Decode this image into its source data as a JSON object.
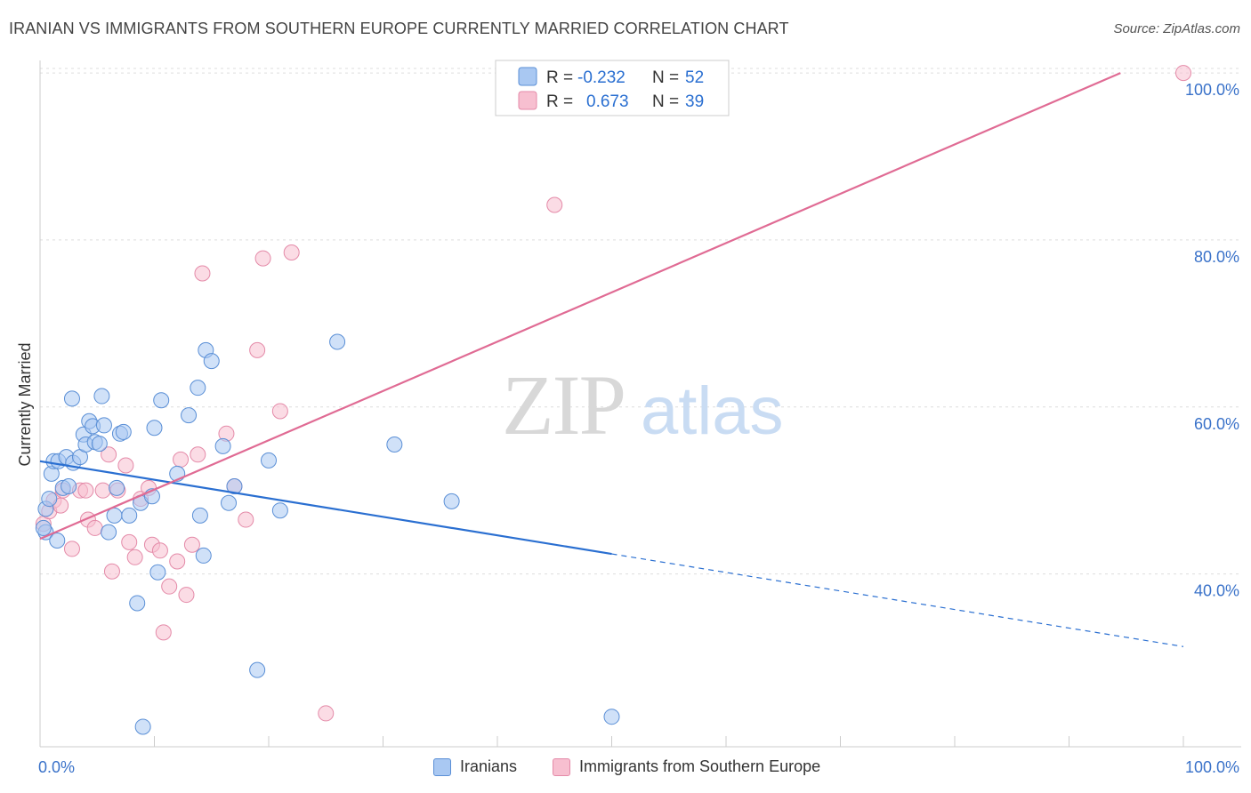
{
  "title": "IRANIAN VS IMMIGRANTS FROM SOUTHERN EUROPE CURRENTLY MARRIED CORRELATION CHART",
  "source": "Source: ZipAtlas.com",
  "watermark": {
    "zip": "ZIP",
    "atlas": "atlas"
  },
  "colors": {
    "blue_fill": "#a9c8f2",
    "blue_stroke": "#5a8fd6",
    "blue_line": "#2a6fd1",
    "pink_fill": "#f7bfd0",
    "pink_stroke": "#e48aa8",
    "pink_line": "#e06b94",
    "axis_text": "#3a72c9",
    "grid": "#dddddd"
  },
  "legend_top": [
    {
      "r_label": "R =",
      "r_value": "-0.232",
      "n_label": "N =",
      "n_value": "52"
    },
    {
      "r_label": "R =",
      "r_value": "0.673",
      "n_label": "N =",
      "n_value": "39"
    }
  ],
  "chart_data": {
    "type": "scatter",
    "title": "IRANIAN VS IMMIGRANTS FROM SOUTHERN EUROPE CURRENTLY MARRIED CORRELATION CHART",
    "xlabel": "",
    "ylabel": "Currently Married",
    "xlim": [
      0,
      100
    ],
    "ylim": [
      19.3,
      101.5
    ],
    "x_tick_labels": [
      "0.0%",
      "100.0%"
    ],
    "y_ticks": [
      40,
      60,
      80,
      100
    ],
    "y_tick_labels": [
      "40.0%",
      "60.0%",
      "80.0%",
      "100.0%"
    ],
    "grid": true,
    "series": [
      {
        "name": "Iranians",
        "r": -0.232,
        "n": 52,
        "trend": {
          "x0": 0,
          "y0": 53.5,
          "x1": 50,
          "y1": 42.4,
          "dash_x1": 100,
          "dash_y1": 31.3
        },
        "points": [
          [
            0.5,
            45.0
          ],
          [
            0.5,
            47.8
          ],
          [
            0.8,
            49.0
          ],
          [
            1.0,
            52.0
          ],
          [
            1.2,
            53.5
          ],
          [
            1.5,
            44.0
          ],
          [
            1.6,
            53.5
          ],
          [
            2.0,
            50.3
          ],
          [
            2.3,
            54.0
          ],
          [
            2.5,
            50.5
          ],
          [
            2.8,
            61.0
          ],
          [
            2.9,
            53.3
          ],
          [
            3.5,
            54.0
          ],
          [
            3.8,
            56.7
          ],
          [
            4.0,
            55.5
          ],
          [
            4.3,
            58.3
          ],
          [
            4.6,
            57.7
          ],
          [
            4.8,
            55.8
          ],
          [
            5.2,
            55.6
          ],
          [
            5.4,
            61.3
          ],
          [
            5.6,
            57.8
          ],
          [
            6.0,
            45.0
          ],
          [
            6.5,
            47.0
          ],
          [
            6.7,
            50.3
          ],
          [
            7.0,
            56.8
          ],
          [
            7.3,
            57.0
          ],
          [
            7.8,
            47.0
          ],
          [
            8.5,
            36.5
          ],
          [
            8.8,
            48.5
          ],
          [
            9.0,
            21.7
          ],
          [
            9.8,
            49.3
          ],
          [
            10.0,
            57.5
          ],
          [
            10.3,
            40.2
          ],
          [
            10.6,
            60.8
          ],
          [
            12.0,
            52.0
          ],
          [
            13.0,
            59.0
          ],
          [
            13.8,
            62.3
          ],
          [
            14.0,
            47.0
          ],
          [
            14.3,
            42.2
          ],
          [
            14.5,
            66.8
          ],
          [
            15.0,
            65.5
          ],
          [
            16.0,
            55.3
          ],
          [
            16.5,
            48.5
          ],
          [
            17.0,
            50.5
          ],
          [
            19.0,
            28.5
          ],
          [
            20.0,
            53.6
          ],
          [
            21.0,
            47.6
          ],
          [
            26.0,
            67.8
          ],
          [
            31.0,
            55.5
          ],
          [
            36.0,
            48.7
          ],
          [
            50.0,
            22.9
          ],
          [
            0.3,
            45.5
          ]
        ]
      },
      {
        "name": "Immigrants from Southern Europe",
        "r": 0.673,
        "n": 39,
        "trend": {
          "x0": 0,
          "y0": 44.2,
          "x1": 94.5,
          "y1": 100.0
        },
        "points": [
          [
            0.3,
            46.0
          ],
          [
            0.8,
            47.5
          ],
          [
            1.2,
            48.8
          ],
          [
            1.8,
            48.2
          ],
          [
            2.0,
            50.0
          ],
          [
            2.8,
            43.0
          ],
          [
            3.5,
            50.0
          ],
          [
            4.0,
            50.0
          ],
          [
            4.2,
            46.5
          ],
          [
            4.8,
            45.5
          ],
          [
            5.5,
            50.0
          ],
          [
            6.0,
            54.3
          ],
          [
            6.3,
            40.3
          ],
          [
            6.8,
            50.0
          ],
          [
            7.5,
            53.0
          ],
          [
            7.8,
            43.8
          ],
          [
            8.3,
            42.0
          ],
          [
            8.8,
            49.0
          ],
          [
            9.5,
            50.3
          ],
          [
            9.8,
            43.5
          ],
          [
            10.5,
            42.8
          ],
          [
            10.8,
            33.0
          ],
          [
            11.3,
            38.5
          ],
          [
            12.0,
            41.5
          ],
          [
            12.3,
            53.7
          ],
          [
            12.8,
            37.5
          ],
          [
            13.3,
            43.5
          ],
          [
            13.8,
            54.3
          ],
          [
            14.2,
            76.0
          ],
          [
            16.3,
            56.8
          ],
          [
            17.0,
            50.5
          ],
          [
            18.0,
            46.5
          ],
          [
            19.0,
            66.8
          ],
          [
            19.5,
            77.8
          ],
          [
            21.0,
            59.5
          ],
          [
            22.0,
            78.5
          ],
          [
            25.0,
            23.3
          ],
          [
            45.0,
            84.2
          ],
          [
            100.0,
            100.0
          ]
        ]
      }
    ]
  }
}
